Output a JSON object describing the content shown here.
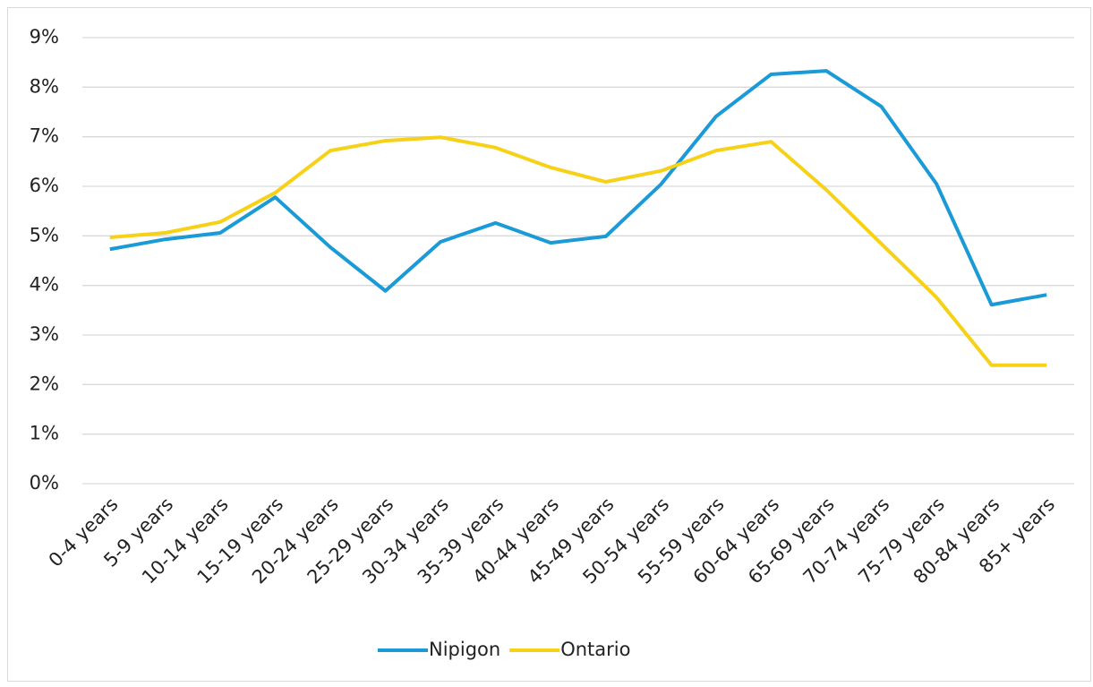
{
  "chart_data": {
    "type": "line",
    "categories": [
      "0-4 years",
      "5-9 years",
      "10-14 years",
      "15-19 years",
      "20-24 years",
      "25-29 years",
      "30-34 years",
      "35-39 years",
      "40-44 years",
      "45-49 years",
      "50-54 years",
      "55-59 years",
      "60-64 years",
      "65-69 years",
      "70-74 years",
      "75-79 years",
      "80-84 years",
      "85+ years"
    ],
    "series": [
      {
        "name": "Nipigon",
        "color": "#1a9ad6",
        "values": [
          4.73,
          4.93,
          5.06,
          5.78,
          4.77,
          3.89,
          4.88,
          5.26,
          4.86,
          4.99,
          6.04,
          7.41,
          8.26,
          8.33,
          7.61,
          6.05,
          3.61,
          3.81
        ]
      },
      {
        "name": "Ontario",
        "color": "#f7d117",
        "values": [
          4.97,
          5.06,
          5.28,
          5.87,
          6.72,
          6.92,
          6.99,
          6.78,
          6.38,
          6.09,
          6.31,
          6.72,
          6.9,
          5.93,
          4.84,
          3.76,
          2.39,
          2.39
        ]
      }
    ],
    "ylim": [
      0,
      9
    ],
    "yticks": [
      {
        "value": 0,
        "label": "0%"
      },
      {
        "value": 1,
        "label": "1%"
      },
      {
        "value": 2,
        "label": "2%"
      },
      {
        "value": 3,
        "label": "3%"
      },
      {
        "value": 4,
        "label": "4%"
      },
      {
        "value": 5,
        "label": "5%"
      },
      {
        "value": 6,
        "label": "6%"
      },
      {
        "value": 7,
        "label": "7%"
      },
      {
        "value": 8,
        "label": "8%"
      },
      {
        "value": 9,
        "label": "9%"
      }
    ],
    "grid": true,
    "legend": "bottom"
  }
}
